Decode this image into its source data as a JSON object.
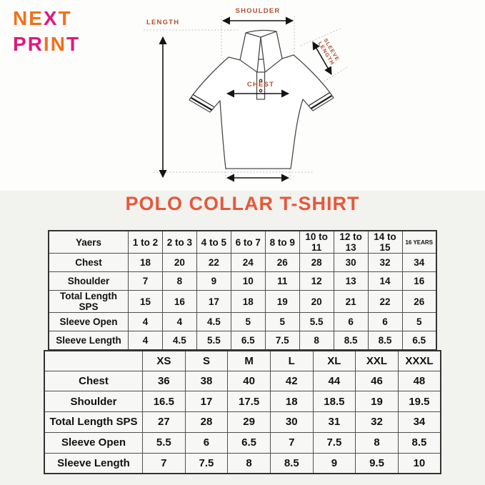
{
  "title": "POLO COLLAR T-SHIRT",
  "colors": {
    "logo_orange": "#f2701d",
    "logo_magenta": "#e0187c",
    "title_color": "#e4593a",
    "diagram_label_color": "#b05030",
    "section_bg": "#f2f2ef"
  },
  "logo": {
    "line1": [
      {
        "char": "N",
        "color": "#f2701d"
      },
      {
        "char": "E",
        "color": "#f2701d"
      },
      {
        "char": "X",
        "color": "#e0187c"
      },
      {
        "char": "T",
        "color": "#f2701d"
      }
    ],
    "line2": [
      {
        "char": "P",
        "color": "#e0187c"
      },
      {
        "char": "R",
        "color": "#e0187c"
      },
      {
        "char": "I",
        "color": "#f2701d"
      },
      {
        "char": "N",
        "color": "#f2701d"
      },
      {
        "char": "T",
        "color": "#e0187c"
      }
    ]
  },
  "diagram": {
    "shoulder_label": "SHOULDER",
    "length_label": "LENGTH",
    "chest_label": "CHEST",
    "sleeve_label_line1": "SLEEVE",
    "sleeve_label_line2": "LENGTH"
  },
  "chart_data": [
    {
      "type": "table",
      "name": "kids-sizes",
      "columns": [
        "Yaers",
        "1 to 2",
        "2 to 3",
        "4 to 5",
        "6 to 7",
        "8 to 9",
        "10 to 11",
        "12 to 13",
        "14 to 15",
        "16 YEARS"
      ],
      "rows": [
        {
          "label": "Chest",
          "values": [
            "18",
            "20",
            "22",
            "24",
            "26",
            "28",
            "30",
            "32",
            "34"
          ]
        },
        {
          "label": "Shoulder",
          "values": [
            "7",
            "8",
            "9",
            "10",
            "11",
            "12",
            "13",
            "14",
            "16"
          ]
        },
        {
          "label": "Total Length SPS",
          "values": [
            "15",
            "16",
            "17",
            "18",
            "19",
            "20",
            "21",
            "22",
            "26"
          ]
        },
        {
          "label": "Sleeve Open",
          "values": [
            "4",
            "4",
            "4.5",
            "5",
            "5",
            "5.5",
            "6",
            "6",
            "5"
          ]
        },
        {
          "label": "Sleeve Length",
          "values": [
            "4",
            "4.5",
            "5.5",
            "6.5",
            "7.5",
            "8",
            "8.5",
            "8.5",
            "6.5"
          ]
        }
      ]
    },
    {
      "type": "table",
      "name": "adult-sizes",
      "columns": [
        "",
        "XS",
        "S",
        "M",
        "L",
        "XL",
        "XXL",
        "XXXL"
      ],
      "rows": [
        {
          "label": "Chest",
          "values": [
            "36",
            "38",
            "40",
            "42",
            "44",
            "46",
            "48"
          ]
        },
        {
          "label": "Shoulder",
          "values": [
            "16.5",
            "17",
            "17.5",
            "18",
            "18.5",
            "19",
            "19.5"
          ]
        },
        {
          "label": "Total Length SPS",
          "values": [
            "27",
            "28",
            "29",
            "30",
            "31",
            "32",
            "34"
          ]
        },
        {
          "label": "Sleeve Open",
          "values": [
            "5.5",
            "6",
            "6.5",
            "7",
            "7.5",
            "8",
            "8.5"
          ]
        },
        {
          "label": "Sleeve Length",
          "values": [
            "7",
            "7.5",
            "8",
            "8.5",
            "9",
            "9.5",
            "10"
          ]
        }
      ]
    }
  ]
}
